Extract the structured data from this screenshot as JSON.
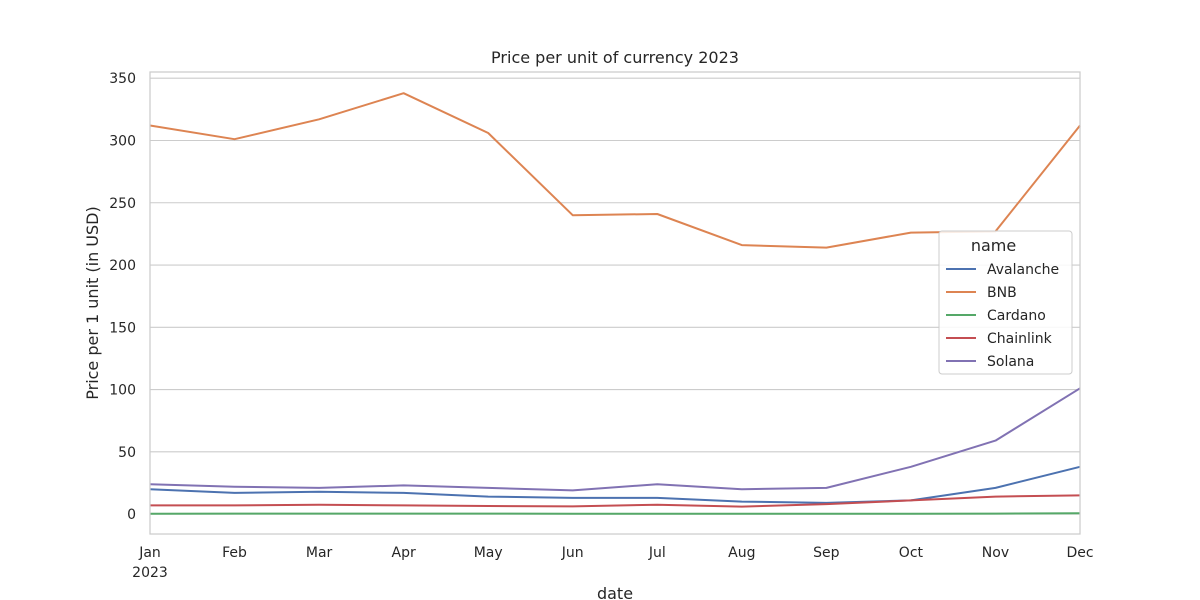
{
  "chart_data": {
    "type": "line",
    "title": "Price per unit of currency 2023",
    "xlabel": "date",
    "ylabel": "Price per 1 unit (in USD)",
    "x_ticks": [
      "Jan",
      "Feb",
      "Mar",
      "Apr",
      "May",
      "Jun",
      "Jul",
      "Aug",
      "Sep",
      "Oct",
      "Nov",
      "Dec"
    ],
    "x_year_label": "2023",
    "y_ticks": [
      "0",
      "50",
      "100",
      "150",
      "200",
      "250",
      "300",
      "350"
    ],
    "ylim": [
      -16,
      355
    ],
    "grid": "horizontal",
    "legend": {
      "title": "name",
      "placement": "center-right"
    },
    "series": [
      {
        "name": "Avalanche",
        "color": "#4c72b0",
        "values": [
          20,
          17,
          18,
          17,
          14,
          13,
          13,
          10,
          9,
          11,
          21,
          38
        ]
      },
      {
        "name": "BNB",
        "color": "#dd8452",
        "values": [
          312,
          301,
          317,
          338,
          306,
          240,
          241,
          216,
          214,
          226,
          227,
          312
        ]
      },
      {
        "name": "Cardano",
        "color": "#55a868",
        "values": [
          0.3,
          0.35,
          0.38,
          0.38,
          0.37,
          0.28,
          0.3,
          0.27,
          0.25,
          0.27,
          0.37,
          0.6
        ]
      },
      {
        "name": "Chainlink",
        "color": "#c44e52",
        "values": [
          7,
          7,
          7.5,
          7,
          6.5,
          6.2,
          7.5,
          6,
          8,
          11,
          14,
          15
        ]
      },
      {
        "name": "Solana",
        "color": "#8172b3",
        "values": [
          24,
          22,
          21,
          23,
          21,
          19,
          24,
          20,
          21,
          38,
          59,
          101
        ]
      }
    ]
  }
}
